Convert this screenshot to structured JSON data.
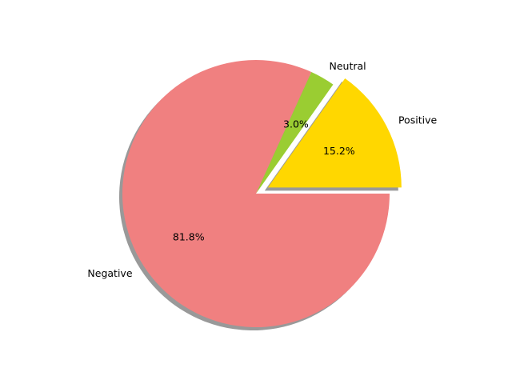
{
  "chart_data": {
    "type": "pie",
    "title": "",
    "start_angle_deg": 0,
    "direction": "counterclockwise",
    "shadow": true,
    "slices": [
      {
        "label": "Positive",
        "value": 15.2,
        "pct_label": "15.2%",
        "color": "#FFD700",
        "explode": true
      },
      {
        "label": "Neutral",
        "value": 3.0,
        "pct_label": "3.0%",
        "color": "#9ACD32",
        "explode": false
      },
      {
        "label": "Negative",
        "value": 81.8,
        "pct_label": "81.8%",
        "color": "#F08080",
        "explode": false
      }
    ]
  }
}
